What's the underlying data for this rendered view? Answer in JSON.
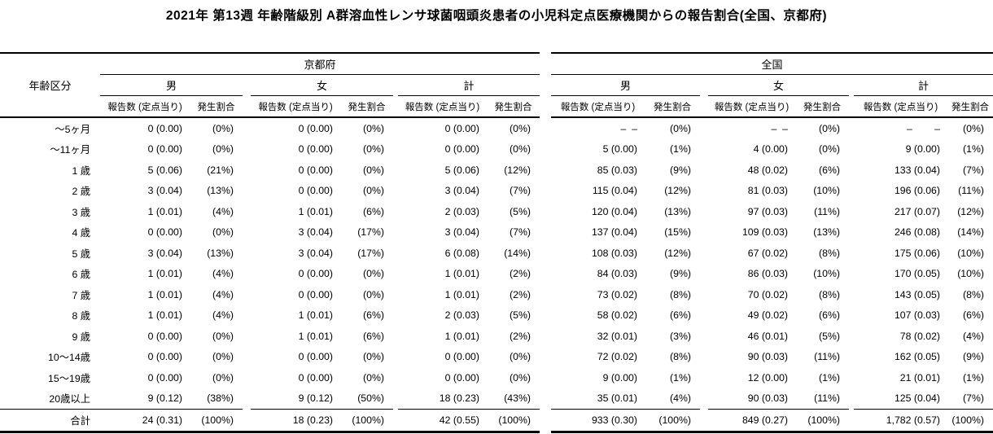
{
  "title": "2021年 第13週 年齢階級別 A群溶血性レンサ球菌咽頭炎患者の小児科定点医療機関からの報告割合(全国、京都府)",
  "table": {
    "age_header": "年齢区分",
    "regions": [
      "京都府",
      "全国"
    ],
    "genders": [
      "男",
      "女",
      "計"
    ],
    "metrics": [
      "報告数 (定点当り)",
      "発生割合"
    ],
    "rows": [
      {
        "age": "〜5ヶ月",
        "kyoto": [
          [
            "0 (0.00)",
            "(0%)"
          ],
          [
            "0 (0.00)",
            "(0%)"
          ],
          [
            "0 (0.00)",
            "(0%)"
          ]
        ],
        "national": [
          [
            "–  –",
            "(0%)"
          ],
          [
            "–  –",
            "(0%)"
          ],
          [
            "–        –",
            "(0%)"
          ]
        ]
      },
      {
        "age": "〜11ヶ月",
        "kyoto": [
          [
            "0 (0.00)",
            "(0%)"
          ],
          [
            "0 (0.00)",
            "(0%)"
          ],
          [
            "0 (0.00)",
            "(0%)"
          ]
        ],
        "national": [
          [
            "5 (0.00)",
            "(1%)"
          ],
          [
            "4 (0.00)",
            "(0%)"
          ],
          [
            "9 (0.00)",
            "(1%)"
          ]
        ]
      },
      {
        "age": "1 歳",
        "kyoto": [
          [
            "5 (0.06)",
            "(21%)"
          ],
          [
            "0 (0.00)",
            "(0%)"
          ],
          [
            "5 (0.06)",
            "(12%)"
          ]
        ],
        "national": [
          [
            "85 (0.03)",
            "(9%)"
          ],
          [
            "48 (0.02)",
            "(6%)"
          ],
          [
            "133 (0.04)",
            "(7%)"
          ]
        ]
      },
      {
        "age": "2 歳",
        "kyoto": [
          [
            "3 (0.04)",
            "(13%)"
          ],
          [
            "0 (0.00)",
            "(0%)"
          ],
          [
            "3 (0.04)",
            "(7%)"
          ]
        ],
        "national": [
          [
            "115 (0.04)",
            "(12%)"
          ],
          [
            "81 (0.03)",
            "(10%)"
          ],
          [
            "196 (0.06)",
            "(11%)"
          ]
        ]
      },
      {
        "age": "3 歳",
        "kyoto": [
          [
            "1 (0.01)",
            "(4%)"
          ],
          [
            "1 (0.01)",
            "(6%)"
          ],
          [
            "2 (0.03)",
            "(5%)"
          ]
        ],
        "national": [
          [
            "120 (0.04)",
            "(13%)"
          ],
          [
            "97 (0.03)",
            "(11%)"
          ],
          [
            "217 (0.07)",
            "(12%)"
          ]
        ]
      },
      {
        "age": "4 歳",
        "kyoto": [
          [
            "0 (0.00)",
            "(0%)"
          ],
          [
            "3 (0.04)",
            "(17%)"
          ],
          [
            "3 (0.04)",
            "(7%)"
          ]
        ],
        "national": [
          [
            "137 (0.04)",
            "(15%)"
          ],
          [
            "109 (0.03)",
            "(13%)"
          ],
          [
            "246 (0.08)",
            "(14%)"
          ]
        ]
      },
      {
        "age": "5 歳",
        "kyoto": [
          [
            "3 (0.04)",
            "(13%)"
          ],
          [
            "3 (0.04)",
            "(17%)"
          ],
          [
            "6 (0.08)",
            "(14%)"
          ]
        ],
        "national": [
          [
            "108 (0.03)",
            "(12%)"
          ],
          [
            "67 (0.02)",
            "(8%)"
          ],
          [
            "175 (0.06)",
            "(10%)"
          ]
        ]
      },
      {
        "age": "6 歳",
        "kyoto": [
          [
            "1 (0.01)",
            "(4%)"
          ],
          [
            "0 (0.00)",
            "(0%)"
          ],
          [
            "1 (0.01)",
            "(2%)"
          ]
        ],
        "national": [
          [
            "84 (0.03)",
            "(9%)"
          ],
          [
            "86 (0.03)",
            "(10%)"
          ],
          [
            "170 (0.05)",
            "(10%)"
          ]
        ]
      },
      {
        "age": "7 歳",
        "kyoto": [
          [
            "1 (0.01)",
            "(4%)"
          ],
          [
            "0 (0.00)",
            "(0%)"
          ],
          [
            "1 (0.01)",
            "(2%)"
          ]
        ],
        "national": [
          [
            "73 (0.02)",
            "(8%)"
          ],
          [
            "70 (0.02)",
            "(8%)"
          ],
          [
            "143 (0.05)",
            "(8%)"
          ]
        ]
      },
      {
        "age": "8 歳",
        "kyoto": [
          [
            "1 (0.01)",
            "(4%)"
          ],
          [
            "1 (0.01)",
            "(6%)"
          ],
          [
            "2 (0.03)",
            "(5%)"
          ]
        ],
        "national": [
          [
            "58 (0.02)",
            "(6%)"
          ],
          [
            "49 (0.02)",
            "(6%)"
          ],
          [
            "107 (0.03)",
            "(6%)"
          ]
        ]
      },
      {
        "age": "9 歳",
        "kyoto": [
          [
            "0 (0.00)",
            "(0%)"
          ],
          [
            "1 (0.01)",
            "(6%)"
          ],
          [
            "1 (0.01)",
            "(2%)"
          ]
        ],
        "national": [
          [
            "32 (0.01)",
            "(3%)"
          ],
          [
            "46 (0.01)",
            "(5%)"
          ],
          [
            "78 (0.02)",
            "(4%)"
          ]
        ]
      },
      {
        "age": "10〜14歳",
        "kyoto": [
          [
            "0 (0.00)",
            "(0%)"
          ],
          [
            "0 (0.00)",
            "(0%)"
          ],
          [
            "0 (0.00)",
            "(0%)"
          ]
        ],
        "national": [
          [
            "72 (0.02)",
            "(8%)"
          ],
          [
            "90 (0.03)",
            "(11%)"
          ],
          [
            "162 (0.05)",
            "(9%)"
          ]
        ]
      },
      {
        "age": "15〜19歳",
        "kyoto": [
          [
            "0 (0.00)",
            "(0%)"
          ],
          [
            "0 (0.00)",
            "(0%)"
          ],
          [
            "0 (0.00)",
            "(0%)"
          ]
        ],
        "national": [
          [
            "9 (0.00)",
            "(1%)"
          ],
          [
            "12 (0.00)",
            "(1%)"
          ],
          [
            "21 (0.01)",
            "(1%)"
          ]
        ]
      },
      {
        "age": "20歳以上",
        "kyoto": [
          [
            "9 (0.12)",
            "(38%)"
          ],
          [
            "9 (0.12)",
            "(50%)"
          ],
          [
            "18 (0.23)",
            "(43%)"
          ]
        ],
        "national": [
          [
            "35 (0.01)",
            "(4%)"
          ],
          [
            "90 (0.03)",
            "(11%)"
          ],
          [
            "125 (0.04)",
            "(7%)"
          ]
        ]
      },
      {
        "age": "合計",
        "total": true,
        "kyoto": [
          [
            "24 (0.31)",
            "(100%)"
          ],
          [
            "18 (0.23)",
            "(100%)"
          ],
          [
            "42 (0.55)",
            "(100%)"
          ]
        ],
        "national": [
          [
            "933 (0.30)",
            "(100%)"
          ],
          [
            "849 (0.27)",
            "(100%)"
          ],
          [
            "1,782 (0.57)",
            "(100%)"
          ]
        ]
      }
    ]
  }
}
